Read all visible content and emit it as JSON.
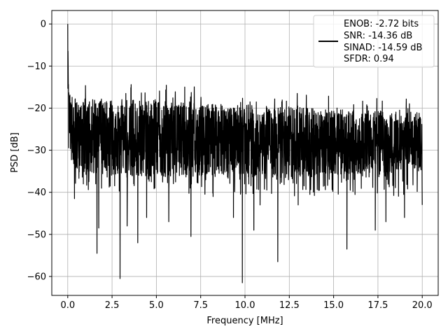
{
  "chart_data": {
    "type": "line",
    "title": "",
    "xlabel": "Frequency [MHz]",
    "ylabel": "PSD [dB]",
    "xlim": [
      -0.9,
      20.9
    ],
    "ylim": [
      -64.5,
      3.2
    ],
    "xticks": [
      0.0,
      2.5,
      5.0,
      7.5,
      10.0,
      12.5,
      15.0,
      17.5,
      20.0
    ],
    "xtick_labels": [
      "0.0",
      "2.5",
      "5.0",
      "7.5",
      "10.0",
      "12.5",
      "15.0",
      "17.5",
      "20.0"
    ],
    "yticks": [
      0,
      -10,
      -20,
      -30,
      -40,
      -50,
      -60
    ],
    "ytick_labels": [
      "0",
      "−10",
      "−20",
      "−30",
      "−40",
      "−50",
      "−60"
    ],
    "grid": true,
    "legend_position": "top-right",
    "series": [
      {
        "color": "#000000",
        "legend_lines": [
          "ENOB: -2.72 bits",
          "SNR: -14.36 dB",
          "SINAD: -14.59 dB",
          "SFDR: 0.94"
        ],
        "profile": {
          "x": [
            0.0,
            0.02,
            0.05,
            0.1,
            0.2,
            0.5,
            1,
            2,
            4,
            6,
            8,
            10,
            12,
            14,
            16,
            18,
            20
          ],
          "mean": [
            0,
            -8,
            -18,
            -22,
            -25,
            -26,
            -26.5,
            -27,
            -27,
            -27.5,
            -27.5,
            -27.5,
            -28,
            -28,
            -28,
            -28,
            -28
          ],
          "upper": [
            0,
            -5,
            -11,
            -13,
            -13.5,
            -14,
            -14,
            -14,
            -14,
            -14.5,
            -15,
            -15.5,
            -16,
            -16.5,
            -17,
            -17.5,
            -18
          ]
        },
        "deep_nulls": [
          {
            "x": 0.38,
            "y": -41.5
          },
          {
            "x": 0.88,
            "y": -38
          },
          {
            "x": 1.65,
            "y": -54.5
          },
          {
            "x": 1.75,
            "y": -48.5
          },
          {
            "x": 2.95,
            "y": -60.5
          },
          {
            "x": 3.35,
            "y": -48
          },
          {
            "x": 3.95,
            "y": -52
          },
          {
            "x": 4.45,
            "y": -46
          },
          {
            "x": 5.7,
            "y": -47
          },
          {
            "x": 6.95,
            "y": -50.5
          },
          {
            "x": 8.2,
            "y": -41
          },
          {
            "x": 9.35,
            "y": -46
          },
          {
            "x": 9.85,
            "y": -61.5
          },
          {
            "x": 10.5,
            "y": -49
          },
          {
            "x": 10.85,
            "y": -43
          },
          {
            "x": 11.85,
            "y": -56.5
          },
          {
            "x": 13.0,
            "y": -43
          },
          {
            "x": 15.75,
            "y": -53.5
          },
          {
            "x": 17.35,
            "y": -49
          },
          {
            "x": 17.95,
            "y": -47
          },
          {
            "x": 19.0,
            "y": -46
          },
          {
            "x": 20.0,
            "y": -43
          }
        ]
      }
    ]
  }
}
